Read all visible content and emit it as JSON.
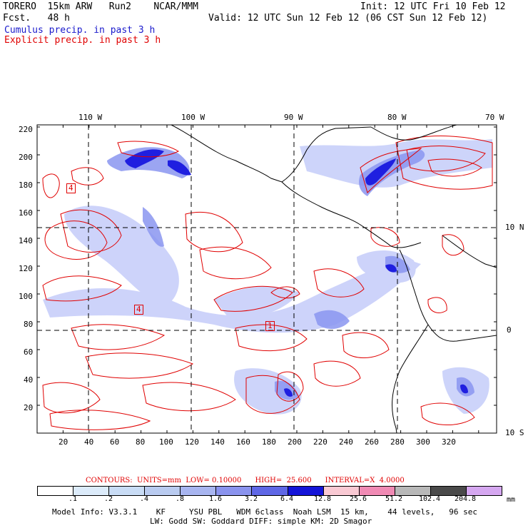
{
  "header": {
    "model_title": "TORERO  15km ARW   Run2    NCAR/MMM",
    "forecast": "Fcst.   48 h",
    "init": "Init: 12 UTC Fri 10 Feb 12",
    "valid": "Valid: 12 UTC Sun 12 Feb 12 (06 CST Sun 12 Feb 12)",
    "field_cumulus": "Cumulus precip. in past 3 h",
    "field_explicit": "Explicit precip. in past 3 h"
  },
  "map": {
    "top_lon_labels": [
      "110 W",
      "100 W",
      "90 W",
      "80 W",
      "70 W"
    ],
    "right_lat_labels": [
      "10 N",
      "0",
      "10 S"
    ],
    "y_grid_labels": [
      "220",
      "200",
      "180",
      "160",
      "140",
      "120",
      "100",
      "80",
      "60",
      "40",
      "20"
    ],
    "x_grid_labels": [
      "20",
      "40",
      "60",
      "80",
      "100",
      "120",
      "140",
      "160",
      "180",
      "200",
      "220",
      "240",
      "260",
      "280",
      "300",
      "320"
    ],
    "contour_box_labels": [
      "4",
      "4",
      "1"
    ],
    "colors": {
      "land_line": "#000000",
      "contour": "#e00000",
      "precip_light": "#c8cffa",
      "precip_mid": "#8a95f0",
      "precip_heavy": "#1f1fe0"
    }
  },
  "footer": {
    "contours_caption": "CONTOURS:  UNITS=mm  LOW= 0.10000      HIGH=  25.600      INTERVAL=X  4.0000",
    "colorbar_values": [
      ".1",
      ".2",
      ".4",
      ".8",
      "1.6",
      "3.2",
      "6.4",
      "12.8",
      "25.6",
      "51.2",
      "102.4",
      "204.8"
    ],
    "colorbar_colors": [
      "#ffffff",
      "#dcebfa",
      "#c9dcf5",
      "#b9cbf0",
      "#a8b5f0",
      "#8a93ee",
      "#5f67e6",
      "#1414d8",
      "#f9c9d3",
      "#f08ab4",
      "#b8b8b8",
      "#4a4a4a",
      "#d5a7f0"
    ],
    "colorbar_unit": "mm",
    "model_info_1": "Model Info: V3.3.1    KF     YSU PBL   WDM 6class  Noah LSM  15 km,    44 levels,   96 sec",
    "model_info_2": "LW: Godd SW: Goddard DIFF: simple KM: 2D Smagor"
  }
}
